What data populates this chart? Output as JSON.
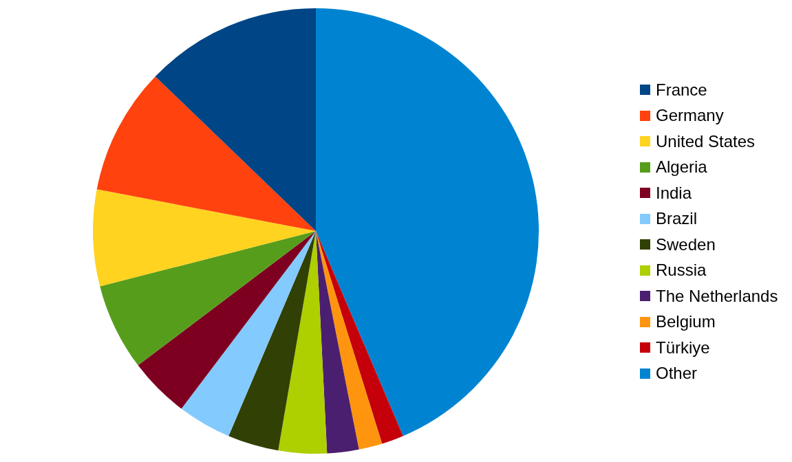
{
  "chart_data": {
    "type": "pie",
    "categories": [
      "France",
      "Germany",
      "United States",
      "Algeria",
      "India",
      "Brazil",
      "Sweden",
      "Russia",
      "The Netherlands",
      "Belgium",
      "Türkiye",
      "Other"
    ],
    "values": [
      12.8,
      9.2,
      7.0,
      6.3,
      4.4,
      3.9,
      3.7,
      3.5,
      2.3,
      1.7,
      1.6,
      43.6
    ],
    "colors": [
      "#004586",
      "#ff420e",
      "#ffd320",
      "#579d1c",
      "#7e0021",
      "#83caff",
      "#314004",
      "#aecf00",
      "#4b1f6f",
      "#ff950e",
      "#c5000b",
      "#0084d1"
    ],
    "legend": "right"
  }
}
